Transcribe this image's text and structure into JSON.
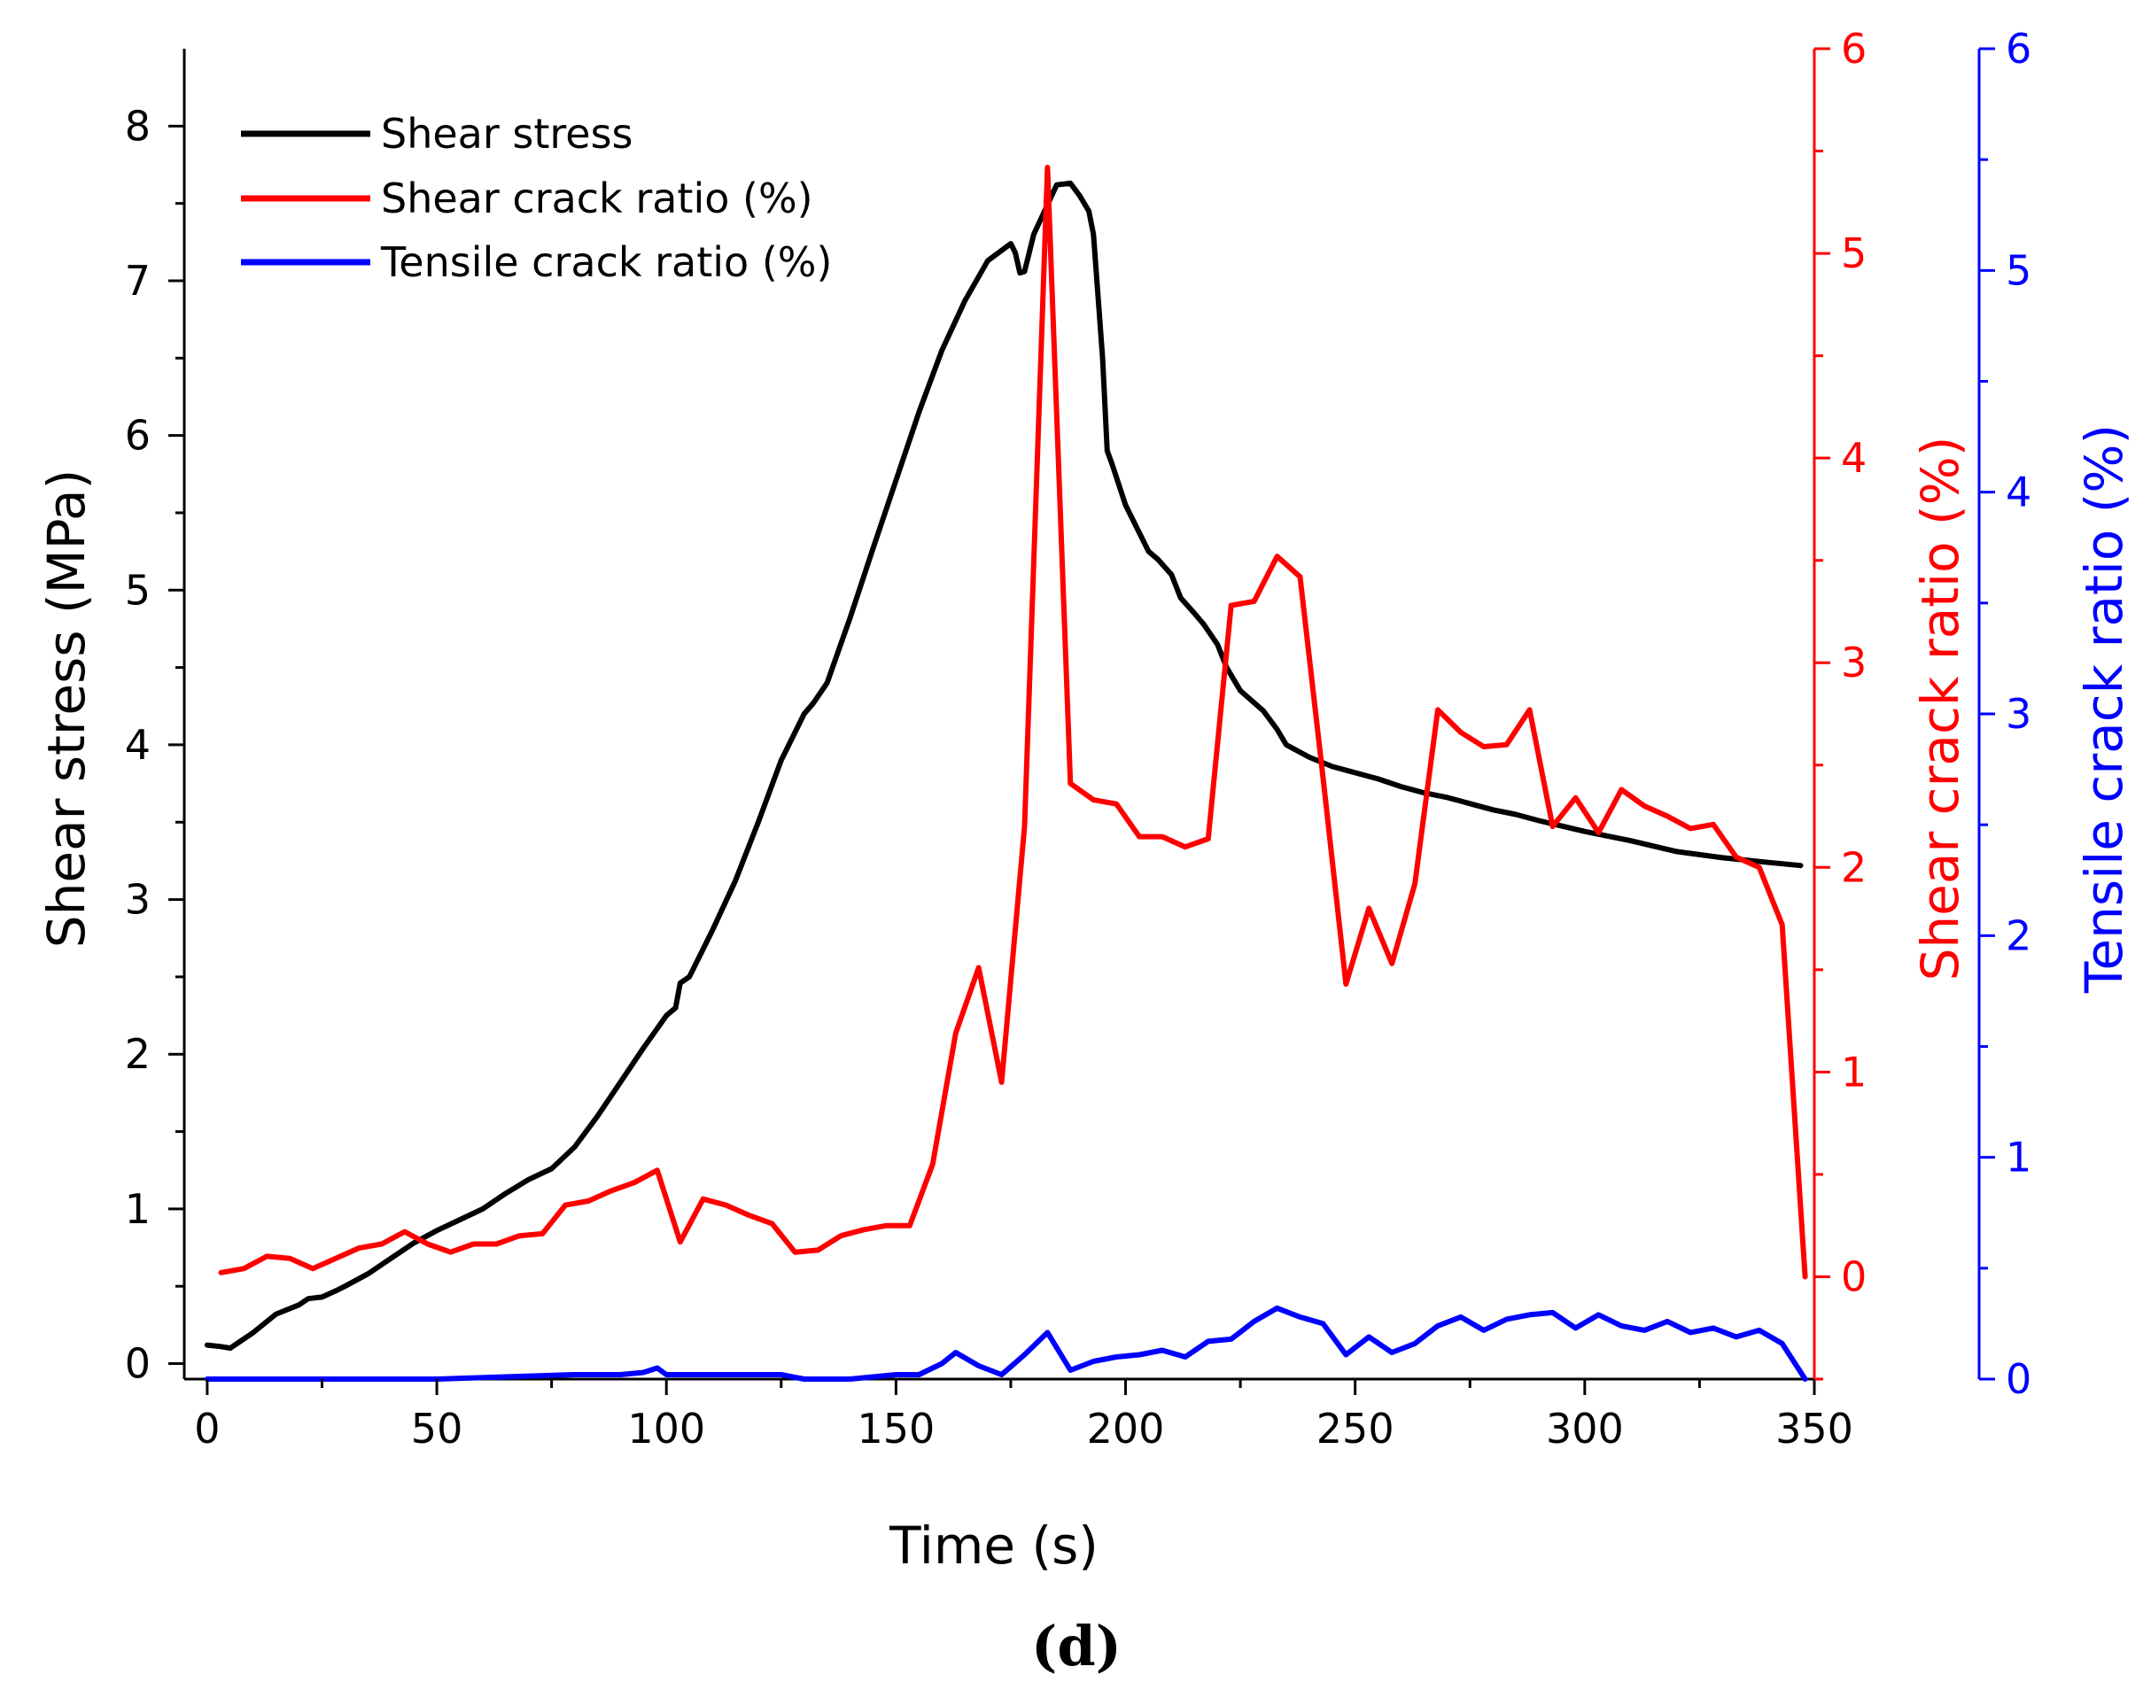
{
  "chart_data": {
    "type": "line",
    "panel_label": "(d)",
    "xlabel": "Time (s)",
    "xlim": [
      -5,
      350
    ],
    "x_ticks": [
      0,
      50,
      100,
      150,
      200,
      250,
      300,
      350
    ],
    "axes": {
      "left": {
        "label": "Shear stress (MPa)",
        "color": "#000000",
        "ylim": [
          -0.1,
          8.5
        ],
        "ticks": [
          0,
          1,
          2,
          3,
          4,
          5,
          6,
          7,
          8
        ]
      },
      "right1": {
        "label": "Shear crack ratio (%)",
        "color": "#ff0000",
        "ylim": [
          -0.5,
          6
        ],
        "ticks": [
          0,
          1,
          2,
          3,
          4,
          5,
          6
        ]
      },
      "right2": {
        "label": "Tensile crack ratio (%)",
        "color": "#0000ff",
        "ylim": [
          0,
          6
        ],
        "ticks": [
          0,
          1,
          2,
          3,
          4,
          5,
          6
        ]
      }
    },
    "legend": {
      "position": "top-left",
      "entries": [
        "Shear stress",
        "Shear crack ratio (%)",
        "Tensile crack ratio (%)"
      ]
    },
    "series": [
      {
        "name": "Shear stress",
        "axis": "left",
        "color": "#000000",
        "x": [
          0,
          3,
          5,
          10,
          15,
          20,
          22,
          25,
          28,
          30,
          35,
          40,
          45,
          50,
          55,
          60,
          65,
          70,
          75,
          80,
          85,
          90,
          95,
          100,
          102,
          103,
          105,
          110,
          115,
          120,
          125,
          130,
          132,
          135,
          140,
          145,
          150,
          155,
          160,
          165,
          170,
          175,
          176,
          177,
          178,
          180,
          185,
          188,
          190,
          192,
          193,
          195,
          196,
          197,
          200,
          205,
          207,
          210,
          212,
          215,
          217,
          220,
          222,
          225,
          230,
          233,
          235,
          240,
          245,
          250,
          255,
          260,
          265,
          270,
          275,
          280,
          285,
          290,
          300,
          310,
          320,
          330,
          340,
          347
        ],
        "values": [
          0.12,
          0.11,
          0.1,
          0.2,
          0.32,
          0.38,
          0.42,
          0.43,
          0.47,
          0.5,
          0.58,
          0.68,
          0.78,
          0.86,
          0.93,
          1.0,
          1.1,
          1.19,
          1.26,
          1.4,
          1.6,
          1.82,
          2.04,
          2.25,
          2.3,
          2.46,
          2.5,
          2.8,
          3.12,
          3.5,
          3.9,
          4.2,
          4.27,
          4.4,
          4.82,
          5.27,
          5.71,
          6.15,
          6.55,
          6.87,
          7.13,
          7.24,
          7.18,
          7.05,
          7.06,
          7.3,
          7.62,
          7.63,
          7.55,
          7.45,
          7.3,
          6.5,
          5.9,
          5.82,
          5.55,
          5.25,
          5.2,
          5.1,
          4.95,
          4.85,
          4.78,
          4.65,
          4.5,
          4.35,
          4.22,
          4.1,
          4.0,
          3.92,
          3.86,
          3.82,
          3.78,
          3.73,
          3.69,
          3.66,
          3.62,
          3.58,
          3.55,
          3.51,
          3.44,
          3.38,
          3.31,
          3.27,
          3.24,
          3.22
        ]
      },
      {
        "name": "Shear crack ratio (%)",
        "axis": "right1",
        "color": "#ff0000",
        "x": [
          3,
          8,
          13,
          18,
          23,
          28,
          33,
          38,
          43,
          48,
          53,
          58,
          63,
          68,
          73,
          78,
          83,
          88,
          93,
          98,
          103,
          108,
          113,
          118,
          123,
          128,
          133,
          138,
          143,
          148,
          153,
          158,
          163,
          168,
          173,
          178,
          183,
          188,
          193,
          198,
          203,
          208,
          213,
          218,
          223,
          228,
          233,
          238,
          243,
          248,
          253,
          258,
          263,
          268,
          273,
          278,
          283,
          288,
          293,
          298,
          303,
          308,
          313,
          318,
          323,
          328,
          333,
          338,
          343,
          348
        ],
        "values": [
          0.02,
          0.04,
          0.1,
          0.09,
          0.04,
          0.09,
          0.14,
          0.16,
          0.22,
          0.16,
          0.12,
          0.16,
          0.16,
          0.2,
          0.21,
          0.35,
          0.37,
          0.42,
          0.46,
          0.52,
          0.17,
          0.38,
          0.35,
          0.3,
          0.26,
          0.12,
          0.13,
          0.2,
          0.23,
          0.25,
          0.25,
          0.55,
          1.19,
          1.51,
          0.95,
          2.2,
          5.42,
          2.41,
          2.33,
          2.31,
          2.15,
          2.15,
          2.1,
          2.14,
          3.28,
          3.3,
          3.52,
          3.42,
          2.44,
          1.43,
          1.8,
          1.53,
          1.92,
          2.77,
          2.66,
          2.59,
          2.6,
          2.77,
          2.2,
          2.34,
          2.17,
          2.38,
          2.3,
          2.25,
          2.19,
          2.21,
          2.05,
          2.0,
          1.72,
          0.0
        ]
      },
      {
        "name": "Tensile crack ratio (%)",
        "axis": "right2",
        "color": "#0000ff",
        "x": [
          0,
          50,
          80,
          90,
          95,
          98,
          100,
          110,
          115,
          120,
          125,
          130,
          140,
          150,
          155,
          160,
          163,
          168,
          173,
          178,
          183,
          188,
          193,
          198,
          203,
          208,
          213,
          218,
          223,
          228,
          233,
          238,
          243,
          248,
          253,
          258,
          263,
          268,
          273,
          278,
          283,
          288,
          293,
          298,
          303,
          308,
          313,
          318,
          323,
          328,
          333,
          338,
          343,
          348
        ],
        "values": [
          0.0,
          0.0,
          0.02,
          0.02,
          0.03,
          0.05,
          0.02,
          0.02,
          0.02,
          0.02,
          0.02,
          0.0,
          0.0,
          0.02,
          0.02,
          0.07,
          0.12,
          0.06,
          0.02,
          0.11,
          0.21,
          0.04,
          0.08,
          0.1,
          0.11,
          0.13,
          0.1,
          0.17,
          0.18,
          0.26,
          0.32,
          0.28,
          0.25,
          0.11,
          0.19,
          0.12,
          0.16,
          0.24,
          0.28,
          0.22,
          0.27,
          0.29,
          0.3,
          0.23,
          0.29,
          0.24,
          0.22,
          0.26,
          0.21,
          0.23,
          0.19,
          0.22,
          0.16,
          0.0
        ]
      }
    ]
  }
}
